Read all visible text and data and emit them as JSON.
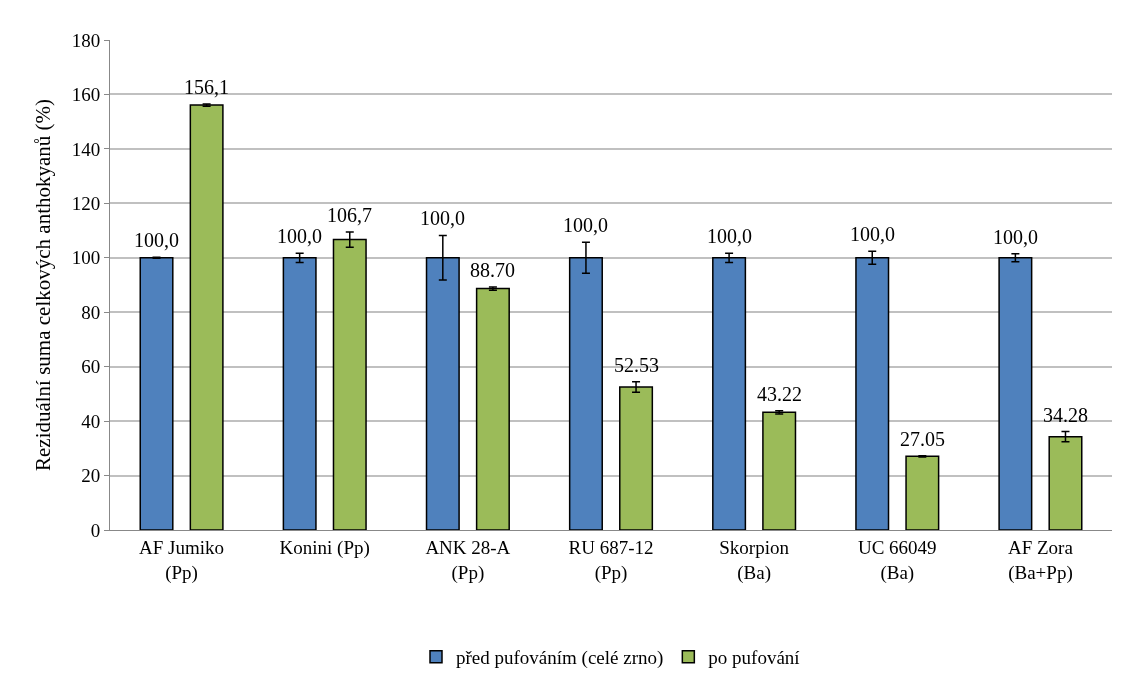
{
  "chart_data": {
    "type": "bar",
    "ylabel": "Reziduální suma celkových anthokyanů (%)",
    "categories": [
      "AF Jumiko\n(Pp)",
      "Konini (Pp)",
      "ANK 28-A\n(Pp)",
      "RU 687-12\n(Pp)",
      "Skorpion\n(Ba)",
      "UC 66049\n(Ba)",
      "AF Zora\n(Ba+Pp)"
    ],
    "series": [
      {
        "name": "před pufováním (celé zrno)",
        "color": "#4f81bd",
        "values": [
          100,
          100,
          100,
          100,
          100,
          100,
          100
        ],
        "errors": [
          0.2,
          1.7,
          8.2,
          5.7,
          1.7,
          2.4,
          1.5
        ],
        "value_labels": [
          "100,0",
          "100,0",
          "100,0",
          "100,0",
          "100,0",
          "100,0",
          "100,0"
        ]
      },
      {
        "name": "po pufování",
        "color": "#9bbb59",
        "values": [
          156.1,
          106.7,
          88.7,
          52.53,
          43.22,
          27.05,
          34.28
        ],
        "errors": [
          0.4,
          2.8,
          0.6,
          1.9,
          0.6,
          0.2,
          1.9
        ],
        "value_labels": [
          "156,1",
          "106,7",
          "88.70",
          "52.53",
          "43.22",
          "27.05",
          "34.28"
        ]
      }
    ],
    "ylim": [
      0,
      180
    ],
    "yticks": [
      0,
      20,
      40,
      60,
      80,
      100,
      120,
      140,
      160,
      180
    ],
    "grid": "y",
    "legend": "bottom"
  }
}
